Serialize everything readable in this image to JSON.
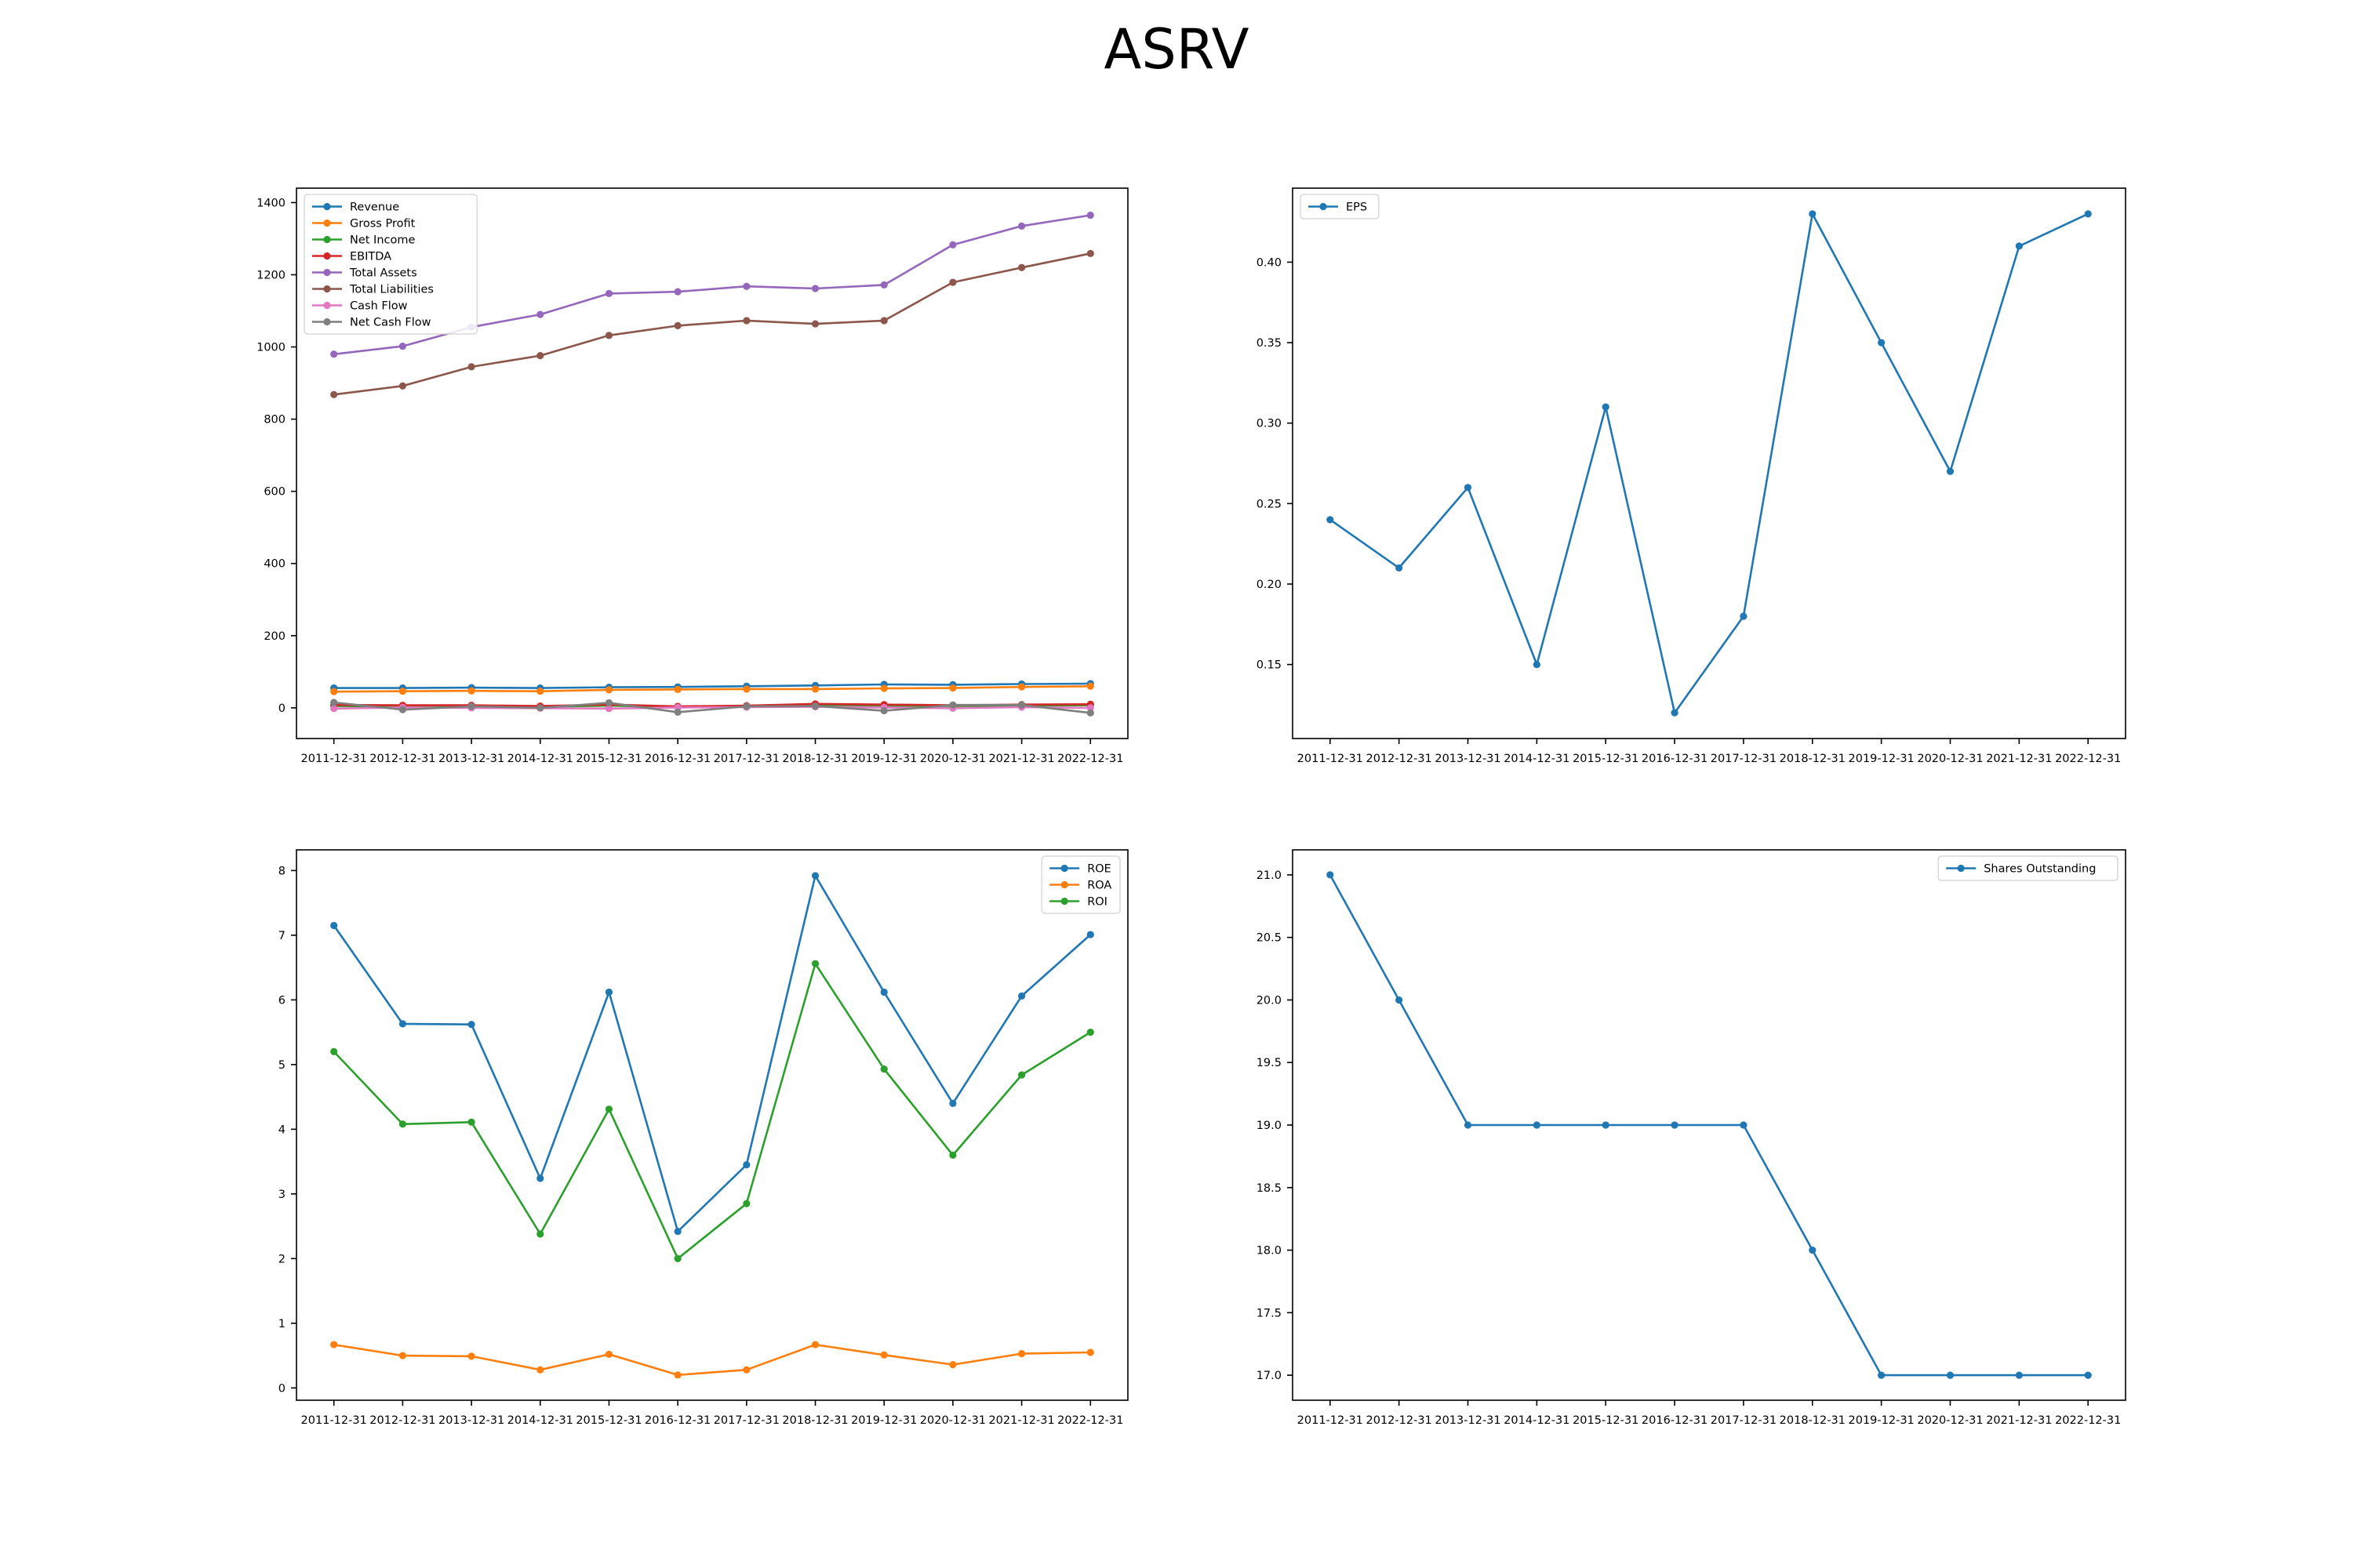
{
  "title": "ASRV",
  "chart_data": [
    {
      "type": "line",
      "x": [
        "2011-12-31",
        "2012-12-31",
        "2013-12-31",
        "2014-12-31",
        "2015-12-31",
        "2016-12-31",
        "2017-12-31",
        "2018-12-31",
        "2019-12-31",
        "2020-12-31",
        "2021-12-31",
        "2022-12-31"
      ],
      "ylim": [
        -85,
        1440
      ],
      "yticks": [
        0,
        200,
        400,
        600,
        800,
        1000,
        1200,
        1400
      ],
      "legend_location": "upper left",
      "series": [
        {
          "name": "Revenue",
          "color": "#1f77b4",
          "values": [
            55,
            55,
            56,
            55,
            57,
            58,
            60,
            62,
            65,
            64,
            66,
            67
          ]
        },
        {
          "name": "Gross Profit",
          "color": "#ff7f0e",
          "values": [
            45,
            46,
            47,
            46,
            50,
            51,
            52,
            52,
            54,
            55,
            58,
            60
          ]
        },
        {
          "name": "Net Income",
          "color": "#2ca02c",
          "values": [
            5,
            4,
            5,
            3,
            6,
            2,
            4,
            8,
            6,
            5,
            6,
            7
          ]
        },
        {
          "name": "EBITDA",
          "color": "#d62728",
          "values": [
            8,
            7,
            7,
            5,
            9,
            4,
            6,
            11,
            9,
            7,
            9,
            10
          ]
        },
        {
          "name": "Total Assets",
          "color": "#9467bd",
          "values": [
            980,
            1002,
            1055,
            1090,
            1148,
            1153,
            1168,
            1162,
            1172,
            1283,
            1335,
            1365
          ]
        },
        {
          "name": "Total Liabilities",
          "color": "#8c564b",
          "values": [
            868,
            892,
            945,
            976,
            1032,
            1059,
            1073,
            1064,
            1073,
            1179,
            1220,
            1259
          ]
        },
        {
          "name": "Cash Flow",
          "color": "#e377c2",
          "values": [
            -2,
            1,
            0,
            -1,
            -2,
            1,
            2,
            3,
            1,
            -1,
            2,
            0
          ]
        },
        {
          "name": "Net Cash Flow",
          "color": "#7f7f7f",
          "values": [
            15,
            -5,
            4,
            0,
            14,
            -12,
            4,
            5,
            -8,
            8,
            8,
            -14
          ]
        }
      ]
    },
    {
      "type": "line",
      "x": [
        "2011-12-31",
        "2012-12-31",
        "2013-12-31",
        "2014-12-31",
        "2015-12-31",
        "2016-12-31",
        "2017-12-31",
        "2018-12-31",
        "2019-12-31",
        "2020-12-31",
        "2021-12-31",
        "2022-12-31"
      ],
      "ylim": [
        0.104,
        0.446
      ],
      "yticks": [
        0.15,
        0.2,
        0.25,
        0.3,
        0.35,
        0.4
      ],
      "tick_decimals": 2,
      "legend_location": "upper left",
      "series": [
        {
          "name": "EPS",
          "color": "#1f77b4",
          "values": [
            0.24,
            0.21,
            0.26,
            0.15,
            0.31,
            0.12,
            0.18,
            0.43,
            0.35,
            0.27,
            0.41,
            0.43
          ]
        }
      ]
    },
    {
      "type": "line",
      "x": [
        "2011-12-31",
        "2012-12-31",
        "2013-12-31",
        "2014-12-31",
        "2015-12-31",
        "2016-12-31",
        "2017-12-31",
        "2018-12-31",
        "2019-12-31",
        "2020-12-31",
        "2021-12-31",
        "2022-12-31"
      ],
      "ylim": [
        -0.19,
        8.32
      ],
      "yticks": [
        0,
        1,
        2,
        3,
        4,
        5,
        6,
        7,
        8
      ],
      "legend_location": "upper right",
      "series": [
        {
          "name": "ROE",
          "color": "#1f77b4",
          "values": [
            7.15,
            5.63,
            5.62,
            3.24,
            6.12,
            2.42,
            3.45,
            7.92,
            6.12,
            4.4,
            6.06,
            7.01
          ]
        },
        {
          "name": "ROA",
          "color": "#ff7f0e",
          "values": [
            0.67,
            0.5,
            0.49,
            0.28,
            0.52,
            0.2,
            0.28,
            0.67,
            0.51,
            0.36,
            0.53,
            0.55
          ]
        },
        {
          "name": "ROI",
          "color": "#2ca02c",
          "values": [
            5.2,
            4.08,
            4.11,
            2.38,
            4.31,
            2.0,
            2.85,
            6.56,
            4.93,
            3.6,
            4.84,
            5.5
          ]
        }
      ]
    },
    {
      "type": "line",
      "x": [
        "2011-12-31",
        "2012-12-31",
        "2013-12-31",
        "2014-12-31",
        "2015-12-31",
        "2016-12-31",
        "2017-12-31",
        "2018-12-31",
        "2019-12-31",
        "2020-12-31",
        "2021-12-31",
        "2022-12-31"
      ],
      "ylim": [
        16.8,
        21.2
      ],
      "yticks": [
        17.0,
        17.5,
        18.0,
        18.5,
        19.0,
        19.5,
        20.0,
        20.5,
        21.0
      ],
      "tick_decimals": 1,
      "legend_location": "upper right",
      "series": [
        {
          "name": "Shares Outstanding",
          "color": "#1f77b4",
          "values": [
            21,
            20,
            19,
            19,
            19,
            19,
            19,
            18,
            17,
            17,
            17,
            17
          ]
        }
      ]
    }
  ]
}
